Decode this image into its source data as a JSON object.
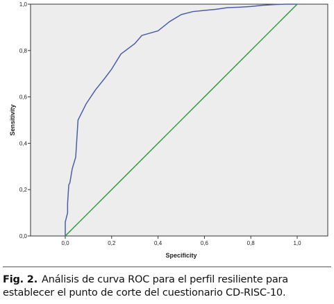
{
  "chart_data": {
    "type": "line",
    "title": "",
    "xlabel": "Specificity",
    "ylabel": "Sensitivity",
    "xlim": [
      0.0,
      1.0
    ],
    "ylim": [
      0.0,
      1.0
    ],
    "xticks": [
      "0,0",
      "0,2",
      "0,4",
      "0,6",
      "0,8",
      "1,0"
    ],
    "yticks": [
      "0,0",
      "0,2",
      "0,4",
      "0,6",
      "0,8",
      "1,0"
    ],
    "grid": false,
    "series": [
      {
        "color": "#4a5ea8",
        "x": [
          0.0,
          0.0,
          0.01,
          0.01,
          0.015,
          0.02,
          0.03,
          0.045,
          0.055,
          0.06,
          0.09,
          0.13,
          0.17,
          0.2,
          0.24,
          0.3,
          0.33,
          0.4,
          0.45,
          0.5,
          0.55,
          0.6,
          0.65,
          0.7,
          0.75,
          0.8,
          0.85,
          0.9,
          0.95,
          1.0
        ],
        "y": [
          0.0,
          0.06,
          0.1,
          0.14,
          0.22,
          0.23,
          0.29,
          0.34,
          0.5,
          0.51,
          0.57,
          0.63,
          0.68,
          0.72,
          0.785,
          0.83,
          0.865,
          0.885,
          0.925,
          0.955,
          0.968,
          0.973,
          0.978,
          0.985,
          0.987,
          0.99,
          0.995,
          0.998,
          1.0,
          1.0
        ]
      },
      {
        "color": "#2f9a3d",
        "x": [
          0.0,
          1.0
        ],
        "y": [
          0.0,
          1.0
        ]
      }
    ]
  },
  "caption": {
    "label": "Fig. 2.",
    "text": "Análisis de curva ROC para el perfil resiliente para establecer el punto de corte del cuestionario CD-RISC-10."
  }
}
